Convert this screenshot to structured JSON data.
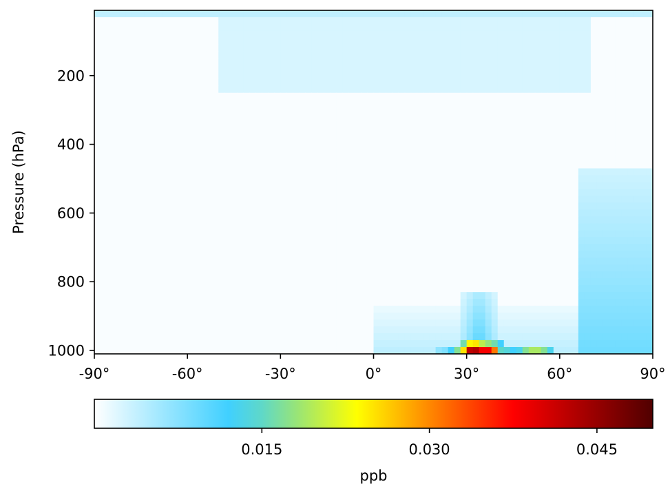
{
  "chart_data": {
    "type": "heatmap",
    "title": "",
    "xlabel": "",
    "ylabel": "Pressure (hPa)",
    "xlim": [
      -90,
      90
    ],
    "ylim": [
      1010,
      10
    ],
    "y_inverted": true,
    "x_ticks": [
      {
        "value": -90,
        "label": "-90°"
      },
      {
        "value": -60,
        "label": "-60°"
      },
      {
        "value": -30,
        "label": "-30°"
      },
      {
        "value": 0,
        "label": "0°"
      },
      {
        "value": 30,
        "label": "30°"
      },
      {
        "value": 60,
        "label": "60°"
      },
      {
        "value": 90,
        "label": "90°"
      }
    ],
    "y_ticks": [
      {
        "value": 200,
        "label": "200"
      },
      {
        "value": 400,
        "label": "400"
      },
      {
        "value": 600,
        "label": "600"
      },
      {
        "value": 800,
        "label": "800"
      },
      {
        "value": 1000,
        "label": "1000"
      }
    ],
    "grid": false,
    "colormap": {
      "name": "white-blue-green-yellow-red-darkred",
      "stops": [
        {
          "pos": 0.0,
          "color": "#ffffff"
        },
        {
          "pos": 0.24,
          "color": "#40d0ff"
        },
        {
          "pos": 0.3,
          "color": "#5fd8c8"
        },
        {
          "pos": 0.36,
          "color": "#96e47a"
        },
        {
          "pos": 0.47,
          "color": "#ffff00"
        },
        {
          "pos": 0.6,
          "color": "#ff8800"
        },
        {
          "pos": 0.75,
          "color": "#ff0000"
        },
        {
          "pos": 1.0,
          "color": "#500000"
        }
      ]
    },
    "colorbar": {
      "orientation": "horizontal",
      "label": "ppb",
      "vmin": 0.0,
      "vmax": 0.05,
      "ticks": [
        {
          "value": 0.015,
          "label": "0.015"
        },
        {
          "value": 0.03,
          "label": "0.030"
        },
        {
          "value": 0.045,
          "label": "0.045"
        }
      ]
    },
    "lat_edges": [
      -90,
      90
    ],
    "lat_step": 2,
    "surface_row": {
      "lat": [
        20,
        22,
        24,
        26,
        28,
        30,
        32,
        34,
        36,
        38,
        40,
        42,
        44,
        46,
        48,
        50,
        52,
        54,
        56
      ],
      "values": [
        0.007,
        0.008,
        0.012,
        0.017,
        0.025,
        0.042,
        0.043,
        0.038,
        0.038,
        0.031,
        0.015,
        0.014,
        0.012,
        0.013,
        0.017,
        0.019,
        0.019,
        0.017,
        0.013
      ]
    },
    "second_row": {
      "lat": [
        28,
        30,
        32,
        34,
        36,
        38,
        40
      ],
      "values": [
        0.016,
        0.024,
        0.025,
        0.02,
        0.018,
        0.016,
        0.012
      ]
    },
    "plumes": [
      {
        "name": "midlatitude low-level plume",
        "lat_center": 34,
        "lat_half_width": 6,
        "p_top": 830,
        "p_bottom": 1000,
        "value": 0.012
      },
      {
        "name": "northern high-latitude column",
        "lat_from": 66,
        "lat_to": 90,
        "p_top": 480,
        "p_bottom": 1000,
        "value": 0.009
      },
      {
        "name": "subtropical low-level",
        "lat_from": 0,
        "lat_to": 66,
        "p_top": 880,
        "p_bottom": 1000,
        "value": 0.004
      },
      {
        "name": "upper troposphere band",
        "lat_from": -50,
        "lat_to": 70,
        "p_top": 10,
        "p_bottom": 240,
        "value": 0.0025
      },
      {
        "name": "model top layer",
        "lat_from": -90,
        "lat_to": 90,
        "p_top": 10,
        "p_bottom": 30,
        "value": 0.004
      }
    ]
  }
}
